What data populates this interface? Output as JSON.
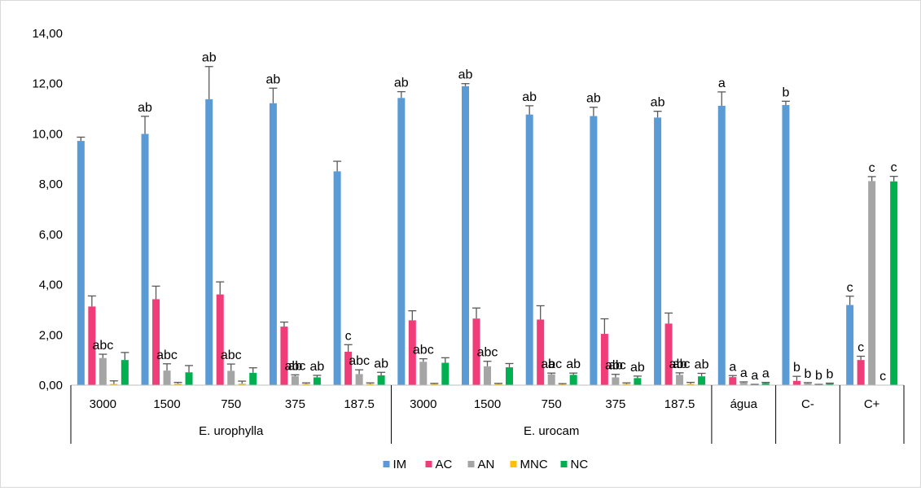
{
  "chart_data": {
    "type": "bar",
    "ylim": [
      0,
      14
    ],
    "ytick_step": 2,
    "ytick_labels": [
      "0,00",
      "2,00",
      "4,00",
      "6,00",
      "8,00",
      "10,00",
      "12,00",
      "14,00"
    ],
    "grid": false,
    "legend_position": "bottom",
    "categories": [
      "3000",
      "1500",
      "750",
      "375",
      "187.5",
      "3000",
      "1500",
      "750",
      "375",
      "187.5",
      "água",
      "C-",
      "C+"
    ],
    "groups": [
      {
        "label": "E. urophylla",
        "start": 0,
        "end": 5
      },
      {
        "label": "E. urocam",
        "start": 5,
        "end": 10
      },
      {
        "label": "",
        "start": 10,
        "end": 11
      },
      {
        "label": "",
        "start": 11,
        "end": 12
      },
      {
        "label": "",
        "start": 12,
        "end": 13
      }
    ],
    "series": [
      {
        "name": "IM",
        "color": "#5B9BD5",
        "values": [
          9.72,
          10.0,
          11.38,
          11.22,
          8.51,
          11.43,
          11.9,
          10.77,
          10.71,
          10.65,
          11.12,
          11.15,
          3.19
        ],
        "errors": [
          0.15,
          0.7,
          1.3,
          0.6,
          0.4,
          0.25,
          0.1,
          0.35,
          0.35,
          0.25,
          0.55,
          0.15,
          0.35
        ]
      },
      {
        "name": "AC",
        "color": "#F03C78",
        "values": [
          3.13,
          3.42,
          3.61,
          2.33,
          1.33,
          2.58,
          2.65,
          2.61,
          2.04,
          2.45,
          0.32,
          0.17,
          1.0
        ],
        "errors": [
          0.42,
          0.52,
          0.5,
          0.18,
          0.28,
          0.38,
          0.42,
          0.55,
          0.6,
          0.42,
          0.06,
          0.18,
          0.15
        ]
      },
      {
        "name": "AN",
        "color": "#A5A5A5",
        "values": [
          1.08,
          0.58,
          0.57,
          0.36,
          0.44,
          0.93,
          0.75,
          0.43,
          0.31,
          0.41,
          0.1,
          0.07,
          8.12
        ],
        "errors": [
          0.15,
          0.27,
          0.27,
          0.05,
          0.17,
          0.12,
          0.2,
          0.05,
          0.12,
          0.08,
          0.03,
          0.03,
          0.18
        ]
      },
      {
        "name": "MNC",
        "color": "#FFC000",
        "values": [
          0.05,
          0.06,
          0.06,
          0.05,
          0.05,
          0.04,
          0.04,
          0.03,
          0.05,
          0.05,
          0.02,
          0.02,
          0.0
        ],
        "errors": [
          0.12,
          0.05,
          0.1,
          0.04,
          0.04,
          0.03,
          0.03,
          0.03,
          0.04,
          0.06,
          0.01,
          0.01,
          0.0
        ]
      },
      {
        "name": "NC",
        "color": "#00B050",
        "values": [
          1.0,
          0.51,
          0.49,
          0.31,
          0.39,
          0.89,
          0.71,
          0.41,
          0.28,
          0.35,
          0.08,
          0.06,
          8.11
        ],
        "errors": [
          0.3,
          0.27,
          0.2,
          0.08,
          0.12,
          0.2,
          0.15,
          0.07,
          0.08,
          0.12,
          0.03,
          0.02,
          0.2
        ]
      }
    ],
    "annotations": [
      {
        "category": 1,
        "series": 0,
        "text": "ab"
      },
      {
        "category": 2,
        "series": 0,
        "text": "ab"
      },
      {
        "category": 3,
        "series": 0,
        "text": "ab"
      },
      {
        "category": 5,
        "series": 0,
        "text": "ab"
      },
      {
        "category": 6,
        "series": 0,
        "text": "ab"
      },
      {
        "category": 7,
        "series": 0,
        "text": "ab"
      },
      {
        "category": 8,
        "series": 0,
        "text": "ab"
      },
      {
        "category": 9,
        "series": 0,
        "text": "ab"
      },
      {
        "category": 10,
        "series": 0,
        "text": "a"
      },
      {
        "category": 11,
        "series": 0,
        "text": "b"
      },
      {
        "category": 12,
        "series": 0,
        "text": "c"
      },
      {
        "category": 0,
        "series": 2,
        "text": "abc"
      },
      {
        "category": 1,
        "series": 2,
        "text": "abc"
      },
      {
        "category": 2,
        "series": 2,
        "text": "abc"
      },
      {
        "category": 3,
        "series": 2,
        "text": "abc"
      },
      {
        "category": 4,
        "series": 1,
        "text": "c"
      },
      {
        "category": 4,
        "series": 2,
        "text": "abc"
      },
      {
        "category": 5,
        "series": 2,
        "text": "abc"
      },
      {
        "category": 6,
        "series": 2,
        "text": "abc"
      },
      {
        "category": 7,
        "series": 2,
        "text": "abc"
      },
      {
        "category": 8,
        "series": 2,
        "text": "abc"
      },
      {
        "category": 9,
        "series": 2,
        "text": "abc"
      },
      {
        "category": 3,
        "series": 2,
        "text": "ab"
      },
      {
        "category": 3,
        "series": 4,
        "text": "ab"
      },
      {
        "category": 4,
        "series": 4,
        "text": "ab"
      },
      {
        "category": 7,
        "series": 2,
        "text": "a"
      },
      {
        "category": 7,
        "series": 4,
        "text": "ab"
      },
      {
        "category": 8,
        "series": 2,
        "text": "ab"
      },
      {
        "category": 8,
        "series": 4,
        "text": "ab"
      },
      {
        "category": 9,
        "series": 2,
        "text": "ab"
      },
      {
        "category": 9,
        "series": 4,
        "text": "ab"
      },
      {
        "category": 10,
        "series": 1,
        "text": "a"
      },
      {
        "category": 10,
        "series": 2,
        "text": "a"
      },
      {
        "category": 10,
        "series": 3,
        "text": "a"
      },
      {
        "category": 10,
        "series": 4,
        "text": "a"
      },
      {
        "category": 11,
        "series": 1,
        "text": "b"
      },
      {
        "category": 11,
        "series": 2,
        "text": "b"
      },
      {
        "category": 11,
        "series": 3,
        "text": "b"
      },
      {
        "category": 11,
        "series": 4,
        "text": "b"
      },
      {
        "category": 12,
        "series": 1,
        "text": "c"
      },
      {
        "category": 12,
        "series": 2,
        "text": "c"
      },
      {
        "category": 12,
        "series": 3,
        "text": "c"
      },
      {
        "category": 12,
        "series": 4,
        "text": "c"
      }
    ]
  }
}
